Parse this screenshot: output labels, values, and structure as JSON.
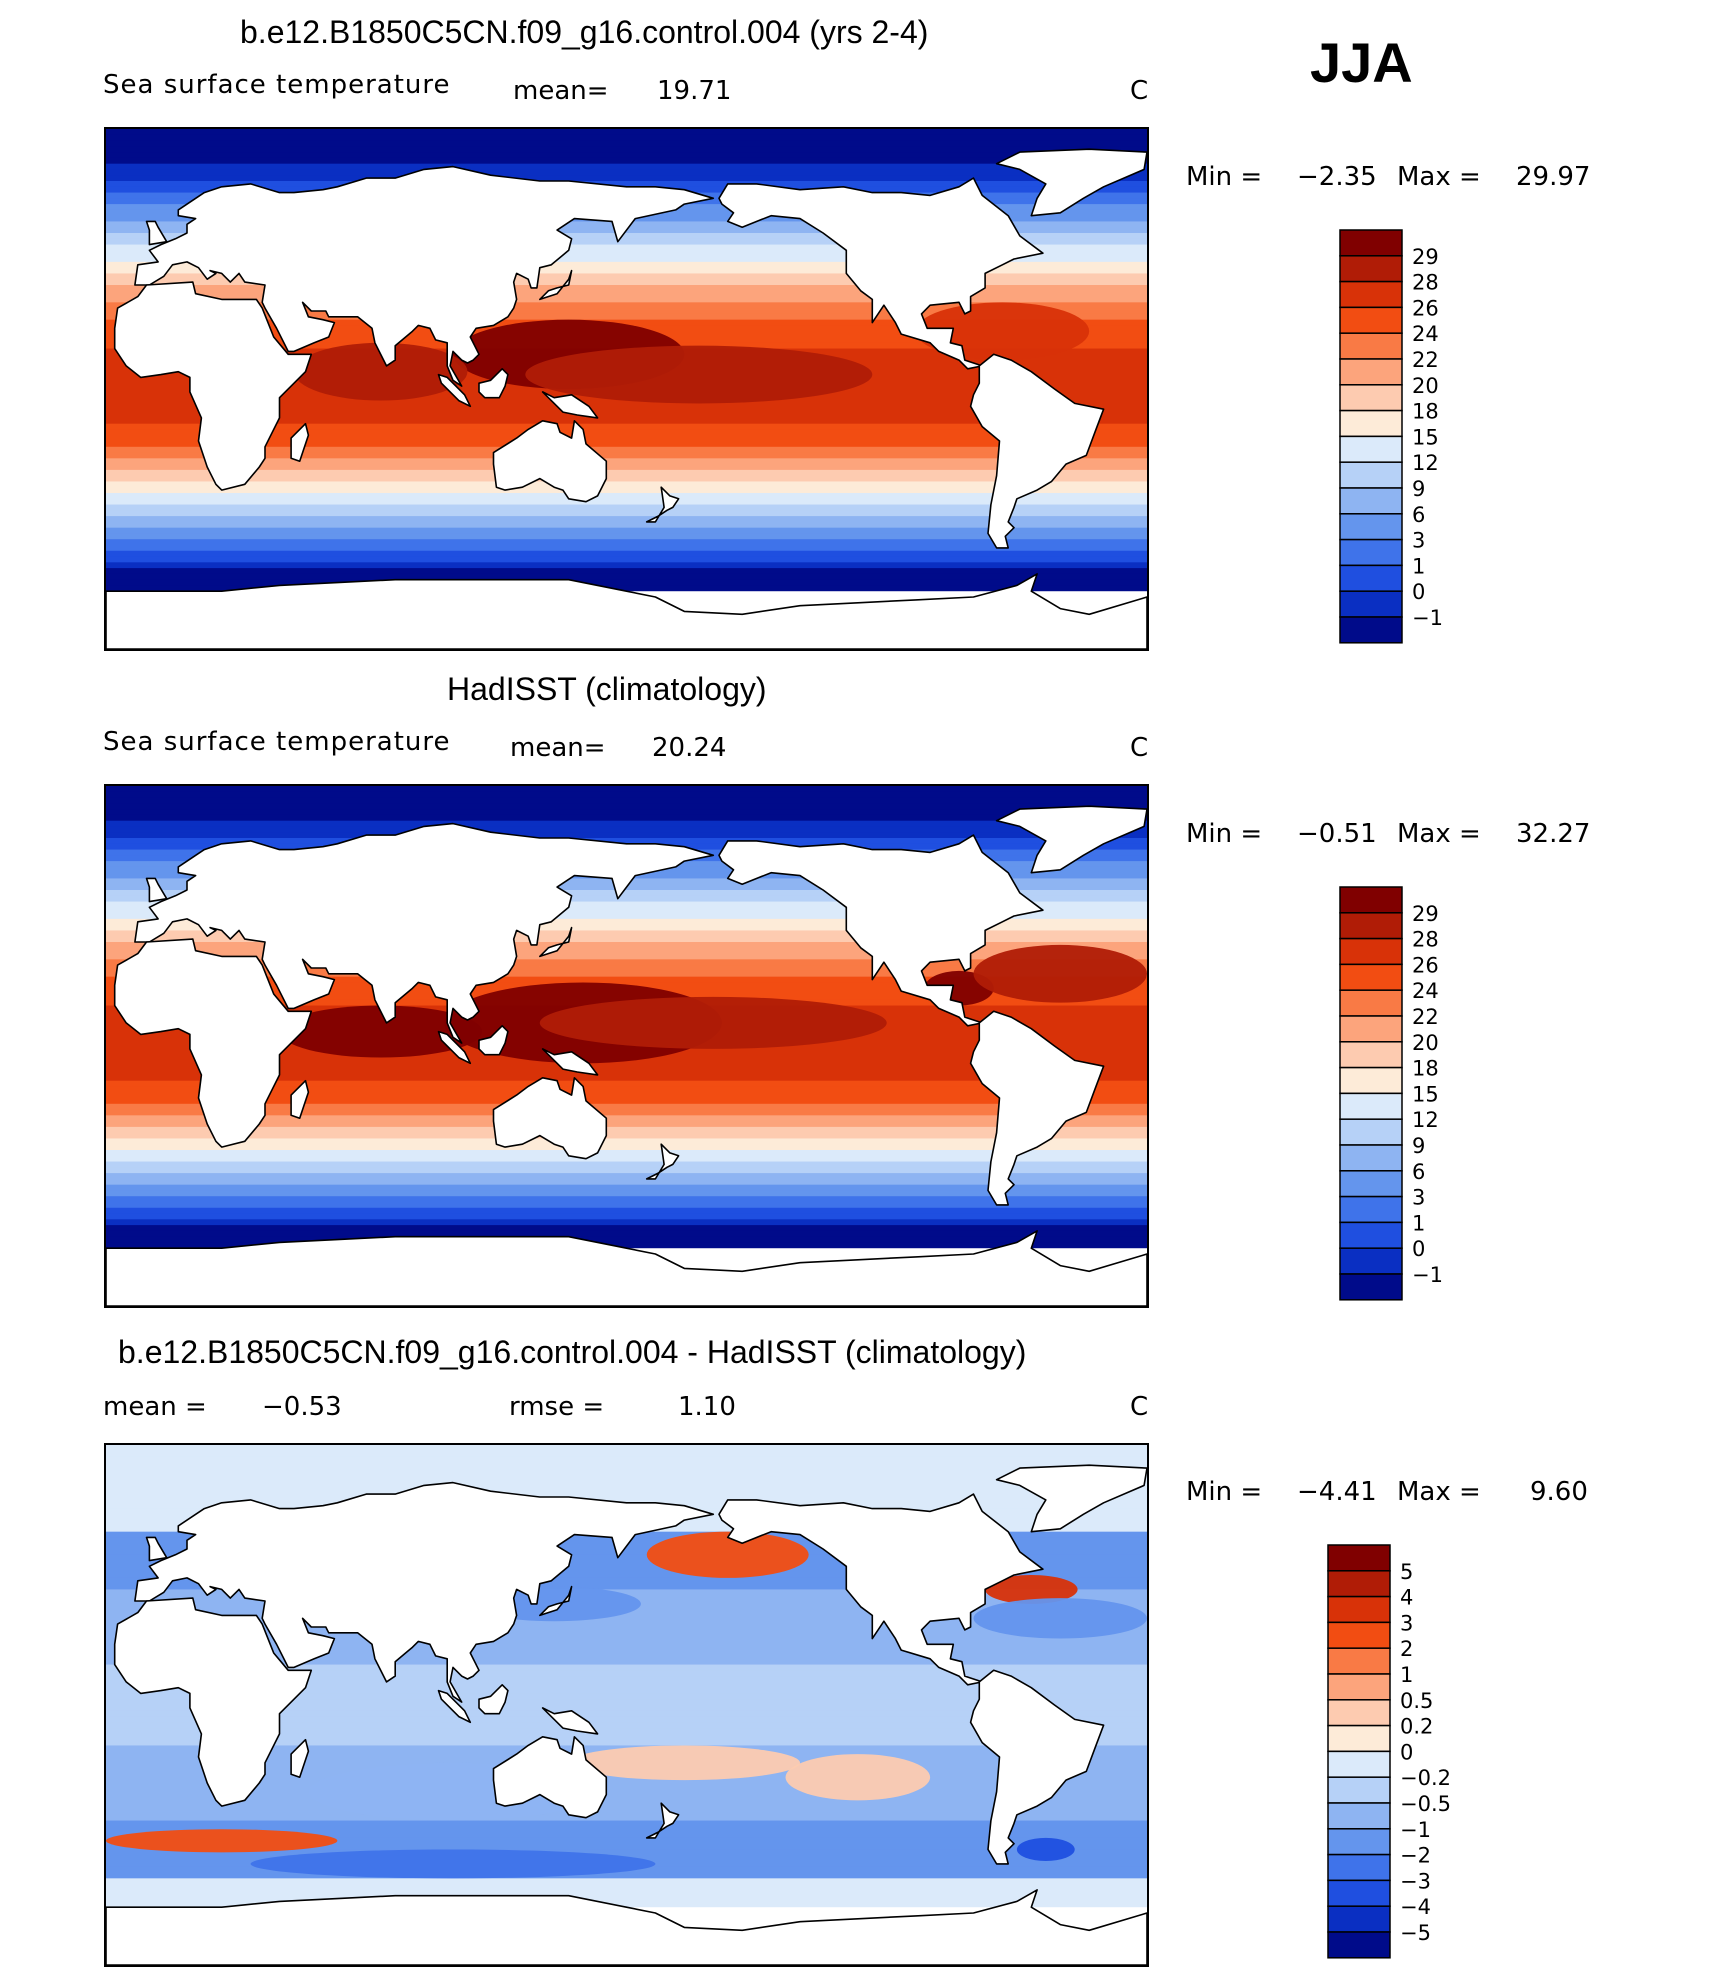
{
  "season": "JJA",
  "panels": [
    {
      "title": "b.e12.B1850C5CN.f09_g16.control.004 (yrs 2-4)",
      "left_label": "Sea surface temperature",
      "stat_label": "mean=",
      "stat_value": "19.71",
      "stat2_label": "",
      "stat2_value": "",
      "units": "C",
      "min_label": "Min =",
      "min_value": "−2.35",
      "max_label": "Max =",
      "max_value": "29.97",
      "scale": "sst"
    },
    {
      "title": "HadISST (climatology)",
      "left_label": "Sea surface temperature",
      "stat_label": "mean=",
      "stat_value": "20.24",
      "stat2_label": "",
      "stat2_value": "",
      "units": "C",
      "min_label": "Min =",
      "min_value": "−0.51",
      "max_label": "Max =",
      "max_value": "32.27",
      "scale": "sst"
    },
    {
      "title": "b.e12.B1850C5CN.f09_g16.control.004 - HadISST (climatology)",
      "left_label": "",
      "stat_label": "mean =",
      "stat_value": "−0.53",
      "stat2_label": "rmse =",
      "stat2_value": "1.10",
      "units": "C",
      "min_label": "Min =",
      "min_value": "−4.41",
      "max_label": "Max =",
      "max_value": "9.60",
      "scale": "diff"
    }
  ],
  "scales": {
    "sst": {
      "levels": [
        "29",
        "28",
        "26",
        "24",
        "22",
        "20",
        "18",
        "15",
        "12",
        "9",
        "6",
        "3",
        "1",
        "0",
        "−1"
      ],
      "colors": [
        "#800000",
        "#b01c06",
        "#d83208",
        "#f24d12",
        "#f97a45",
        "#fca47c",
        "#fdcbb0",
        "#fdebd8",
        "#dbeafa",
        "#b6d1f7",
        "#8eb4f2",
        "#6495ed",
        "#3f73ea",
        "#1f4fe0",
        "#0a2fc2",
        "#000b8a"
      ]
    },
    "diff": {
      "levels": [
        "5",
        "4",
        "3",
        "2",
        "1",
        "0.5",
        "0.2",
        "0",
        "−0.2",
        "−0.5",
        "−1",
        "−2",
        "−3",
        "−4",
        "−5"
      ],
      "colors": [
        "#800000",
        "#b01c06",
        "#d83208",
        "#f24d12",
        "#f97a45",
        "#fca47c",
        "#fdcbb0",
        "#fdebd8",
        "#dbeafa",
        "#b6d1f7",
        "#8eb4f2",
        "#6495ed",
        "#3f73ea",
        "#1f4fe0",
        "#0a2fc2",
        "#000b8a"
      ]
    }
  },
  "chart_data": [
    {
      "type": "heatmap",
      "title": "b.e12.B1850C5CN.f09_g16.control.004 (yrs 2-4)",
      "variable": "Sea surface temperature",
      "units": "C",
      "mean": 19.71,
      "min": -2.35,
      "max": 29.97,
      "contour_levels": [
        -1,
        0,
        1,
        3,
        6,
        9,
        12,
        15,
        18,
        20,
        22,
        24,
        26,
        28,
        29
      ]
    },
    {
      "type": "heatmap",
      "title": "HadISST (climatology)",
      "variable": "Sea surface temperature",
      "units": "C",
      "mean": 20.24,
      "min": -0.51,
      "max": 32.27,
      "contour_levels": [
        -1,
        0,
        1,
        3,
        6,
        9,
        12,
        15,
        18,
        20,
        22,
        24,
        26,
        28,
        29
      ]
    },
    {
      "type": "heatmap",
      "title": "b.e12.B1850C5CN.f09_g16.control.004 - HadISST (climatology)",
      "units": "C",
      "mean": -0.53,
      "rmse": 1.1,
      "min": -4.41,
      "max": 9.6,
      "contour_levels": [
        -5,
        -4,
        -3,
        -2,
        -1,
        -0.5,
        -0.2,
        0,
        0.2,
        0.5,
        1,
        2,
        3,
        4,
        5
      ]
    }
  ]
}
